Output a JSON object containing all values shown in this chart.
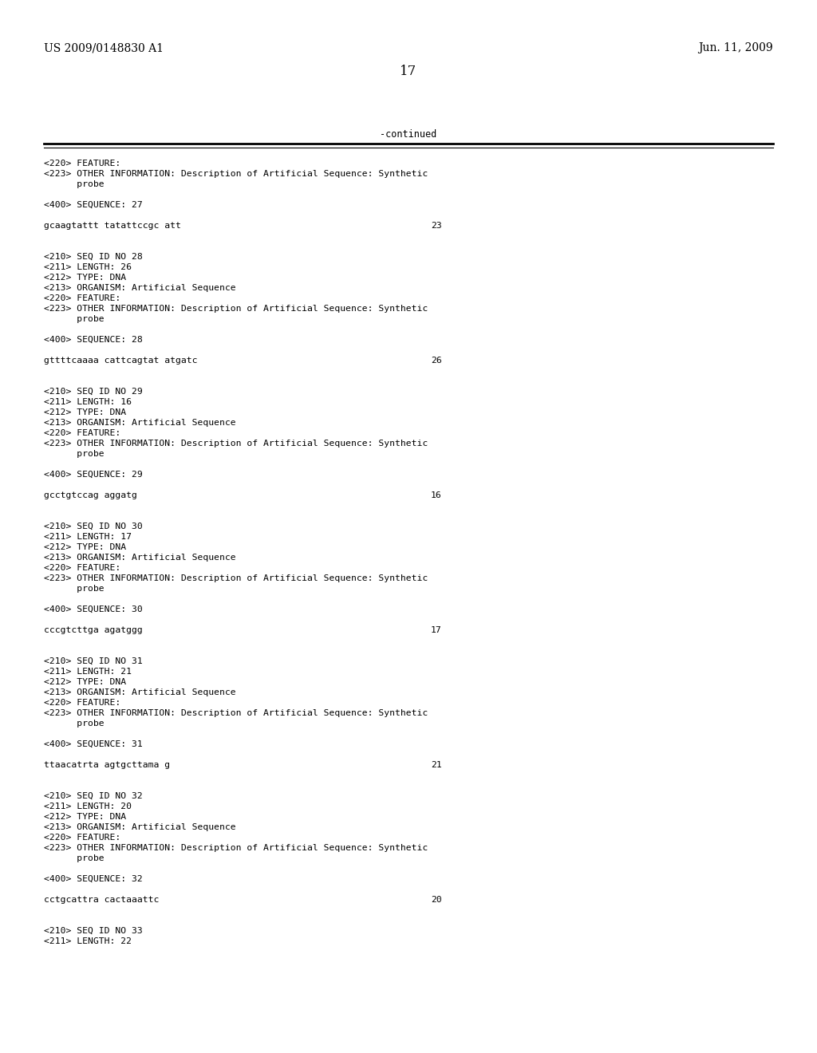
{
  "header_left": "US 2009/0148830 A1",
  "header_right": "Jun. 11, 2009",
  "page_number": "17",
  "continued_label": "-continued",
  "bg": "#ffffff",
  "fg": "#000000",
  "lines": [
    {
      "t": "<220> FEATURE:"
    },
    {
      "t": "<223> OTHER INFORMATION: Description of Artificial Sequence: Synthetic"
    },
    {
      "t": "      probe"
    },
    {
      "t": ""
    },
    {
      "t": "<400> SEQUENCE: 27"
    },
    {
      "t": ""
    },
    {
      "t": "gcaagtattt tatattccgc att",
      "num": "23"
    },
    {
      "t": ""
    },
    {
      "t": ""
    },
    {
      "t": "<210> SEQ ID NO 28"
    },
    {
      "t": "<211> LENGTH: 26"
    },
    {
      "t": "<212> TYPE: DNA"
    },
    {
      "t": "<213> ORGANISM: Artificial Sequence"
    },
    {
      "t": "<220> FEATURE:"
    },
    {
      "t": "<223> OTHER INFORMATION: Description of Artificial Sequence: Synthetic"
    },
    {
      "t": "      probe"
    },
    {
      "t": ""
    },
    {
      "t": "<400> SEQUENCE: 28"
    },
    {
      "t": ""
    },
    {
      "t": "gttttcaaaa cattcagtat atgatc",
      "num": "26"
    },
    {
      "t": ""
    },
    {
      "t": ""
    },
    {
      "t": "<210> SEQ ID NO 29"
    },
    {
      "t": "<211> LENGTH: 16"
    },
    {
      "t": "<212> TYPE: DNA"
    },
    {
      "t": "<213> ORGANISM: Artificial Sequence"
    },
    {
      "t": "<220> FEATURE:"
    },
    {
      "t": "<223> OTHER INFORMATION: Description of Artificial Sequence: Synthetic"
    },
    {
      "t": "      probe"
    },
    {
      "t": ""
    },
    {
      "t": "<400> SEQUENCE: 29"
    },
    {
      "t": ""
    },
    {
      "t": "gcctgtccag aggatg",
      "num": "16"
    },
    {
      "t": ""
    },
    {
      "t": ""
    },
    {
      "t": "<210> SEQ ID NO 30"
    },
    {
      "t": "<211> LENGTH: 17"
    },
    {
      "t": "<212> TYPE: DNA"
    },
    {
      "t": "<213> ORGANISM: Artificial Sequence"
    },
    {
      "t": "<220> FEATURE:"
    },
    {
      "t": "<223> OTHER INFORMATION: Description of Artificial Sequence: Synthetic"
    },
    {
      "t": "      probe"
    },
    {
      "t": ""
    },
    {
      "t": "<400> SEQUENCE: 30"
    },
    {
      "t": ""
    },
    {
      "t": "cccgtcttga agatggg",
      "num": "17"
    },
    {
      "t": ""
    },
    {
      "t": ""
    },
    {
      "t": "<210> SEQ ID NO 31"
    },
    {
      "t": "<211> LENGTH: 21"
    },
    {
      "t": "<212> TYPE: DNA"
    },
    {
      "t": "<213> ORGANISM: Artificial Sequence"
    },
    {
      "t": "<220> FEATURE:"
    },
    {
      "t": "<223> OTHER INFORMATION: Description of Artificial Sequence: Synthetic"
    },
    {
      "t": "      probe"
    },
    {
      "t": ""
    },
    {
      "t": "<400> SEQUENCE: 31"
    },
    {
      "t": ""
    },
    {
      "t": "ttaacatrta agtgcttama g",
      "num": "21"
    },
    {
      "t": ""
    },
    {
      "t": ""
    },
    {
      "t": "<210> SEQ ID NO 32"
    },
    {
      "t": "<211> LENGTH: 20"
    },
    {
      "t": "<212> TYPE: DNA"
    },
    {
      "t": "<213> ORGANISM: Artificial Sequence"
    },
    {
      "t": "<220> FEATURE:"
    },
    {
      "t": "<223> OTHER INFORMATION: Description of Artificial Sequence: Synthetic"
    },
    {
      "t": "      probe"
    },
    {
      "t": ""
    },
    {
      "t": "<400> SEQUENCE: 32"
    },
    {
      "t": ""
    },
    {
      "t": "cctgcattra cactaaattc",
      "num": "20"
    },
    {
      "t": ""
    },
    {
      "t": ""
    },
    {
      "t": "<210> SEQ ID NO 33"
    },
    {
      "t": "<211> LENGTH: 22"
    }
  ]
}
